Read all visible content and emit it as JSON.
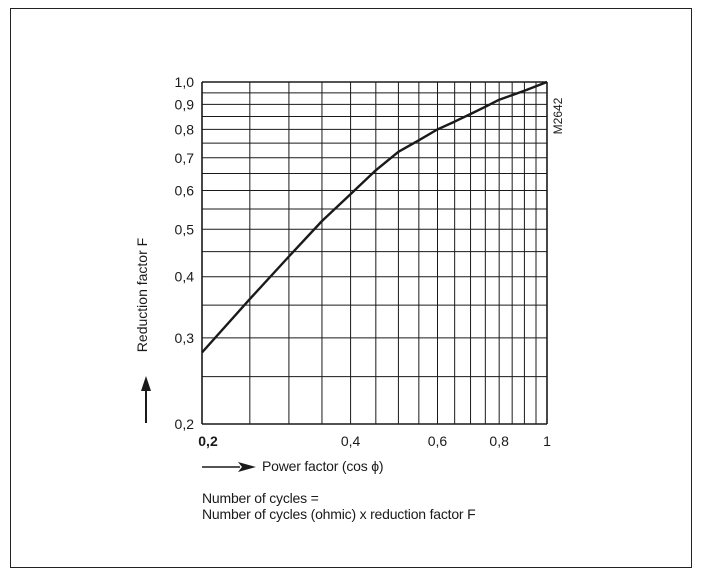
{
  "chart_data": {
    "type": "line",
    "xlabel": "Power factor (cos ϕ)",
    "ylabel": "Reduction factor F",
    "x_scale": "log",
    "y_scale": "log",
    "xlim": [
      0.2,
      1.0
    ],
    "ylim": [
      0.2,
      1.0
    ],
    "grid": true,
    "x_ticks": [
      {
        "value": 0.2,
        "label": "0,2"
      },
      {
        "value": 0.4,
        "label": "0,4"
      },
      {
        "value": 0.6,
        "label": "0,6"
      },
      {
        "value": 0.8,
        "label": "0,8"
      },
      {
        "value": 1.0,
        "label": "1"
      }
    ],
    "y_ticks": [
      {
        "value": 0.2,
        "label": "0,2"
      },
      {
        "value": 0.3,
        "label": "0,3"
      },
      {
        "value": 0.4,
        "label": "0,4"
      },
      {
        "value": 0.5,
        "label": "0,5"
      },
      {
        "value": 0.6,
        "label": "0,6"
      },
      {
        "value": 0.7,
        "label": "0,7"
      },
      {
        "value": 0.8,
        "label": "0,8"
      },
      {
        "value": 0.9,
        "label": "0,9"
      },
      {
        "value": 1.0,
        "label": "1,0"
      }
    ],
    "x_gridlines": [
      0.2,
      0.25,
      0.3,
      0.35,
      0.4,
      0.45,
      0.5,
      0.55,
      0.6,
      0.65,
      0.7,
      0.75,
      0.8,
      0.85,
      0.9,
      0.95,
      1.0
    ],
    "y_gridlines": [
      0.2,
      0.25,
      0.3,
      0.35,
      0.4,
      0.45,
      0.5,
      0.55,
      0.6,
      0.65,
      0.7,
      0.75,
      0.8,
      0.85,
      0.9,
      0.95,
      1.0
    ],
    "series": [
      {
        "x": [
          0.2,
          0.25,
          0.3,
          0.35,
          0.4,
          0.45,
          0.5,
          0.55,
          0.6,
          0.65,
          0.7,
          0.75,
          0.8,
          0.85,
          0.9,
          0.95,
          1.0
        ],
        "y": [
          0.28,
          0.36,
          0.44,
          0.52,
          0.59,
          0.66,
          0.72,
          0.76,
          0.8,
          0.83,
          0.86,
          0.89,
          0.92,
          0.94,
          0.96,
          0.98,
          1.0
        ]
      }
    ],
    "figure_code": "M2642",
    "note_lines": [
      "Number of cycles =",
      "Number of cycles (ohmic) x reduction factor F"
    ]
  }
}
